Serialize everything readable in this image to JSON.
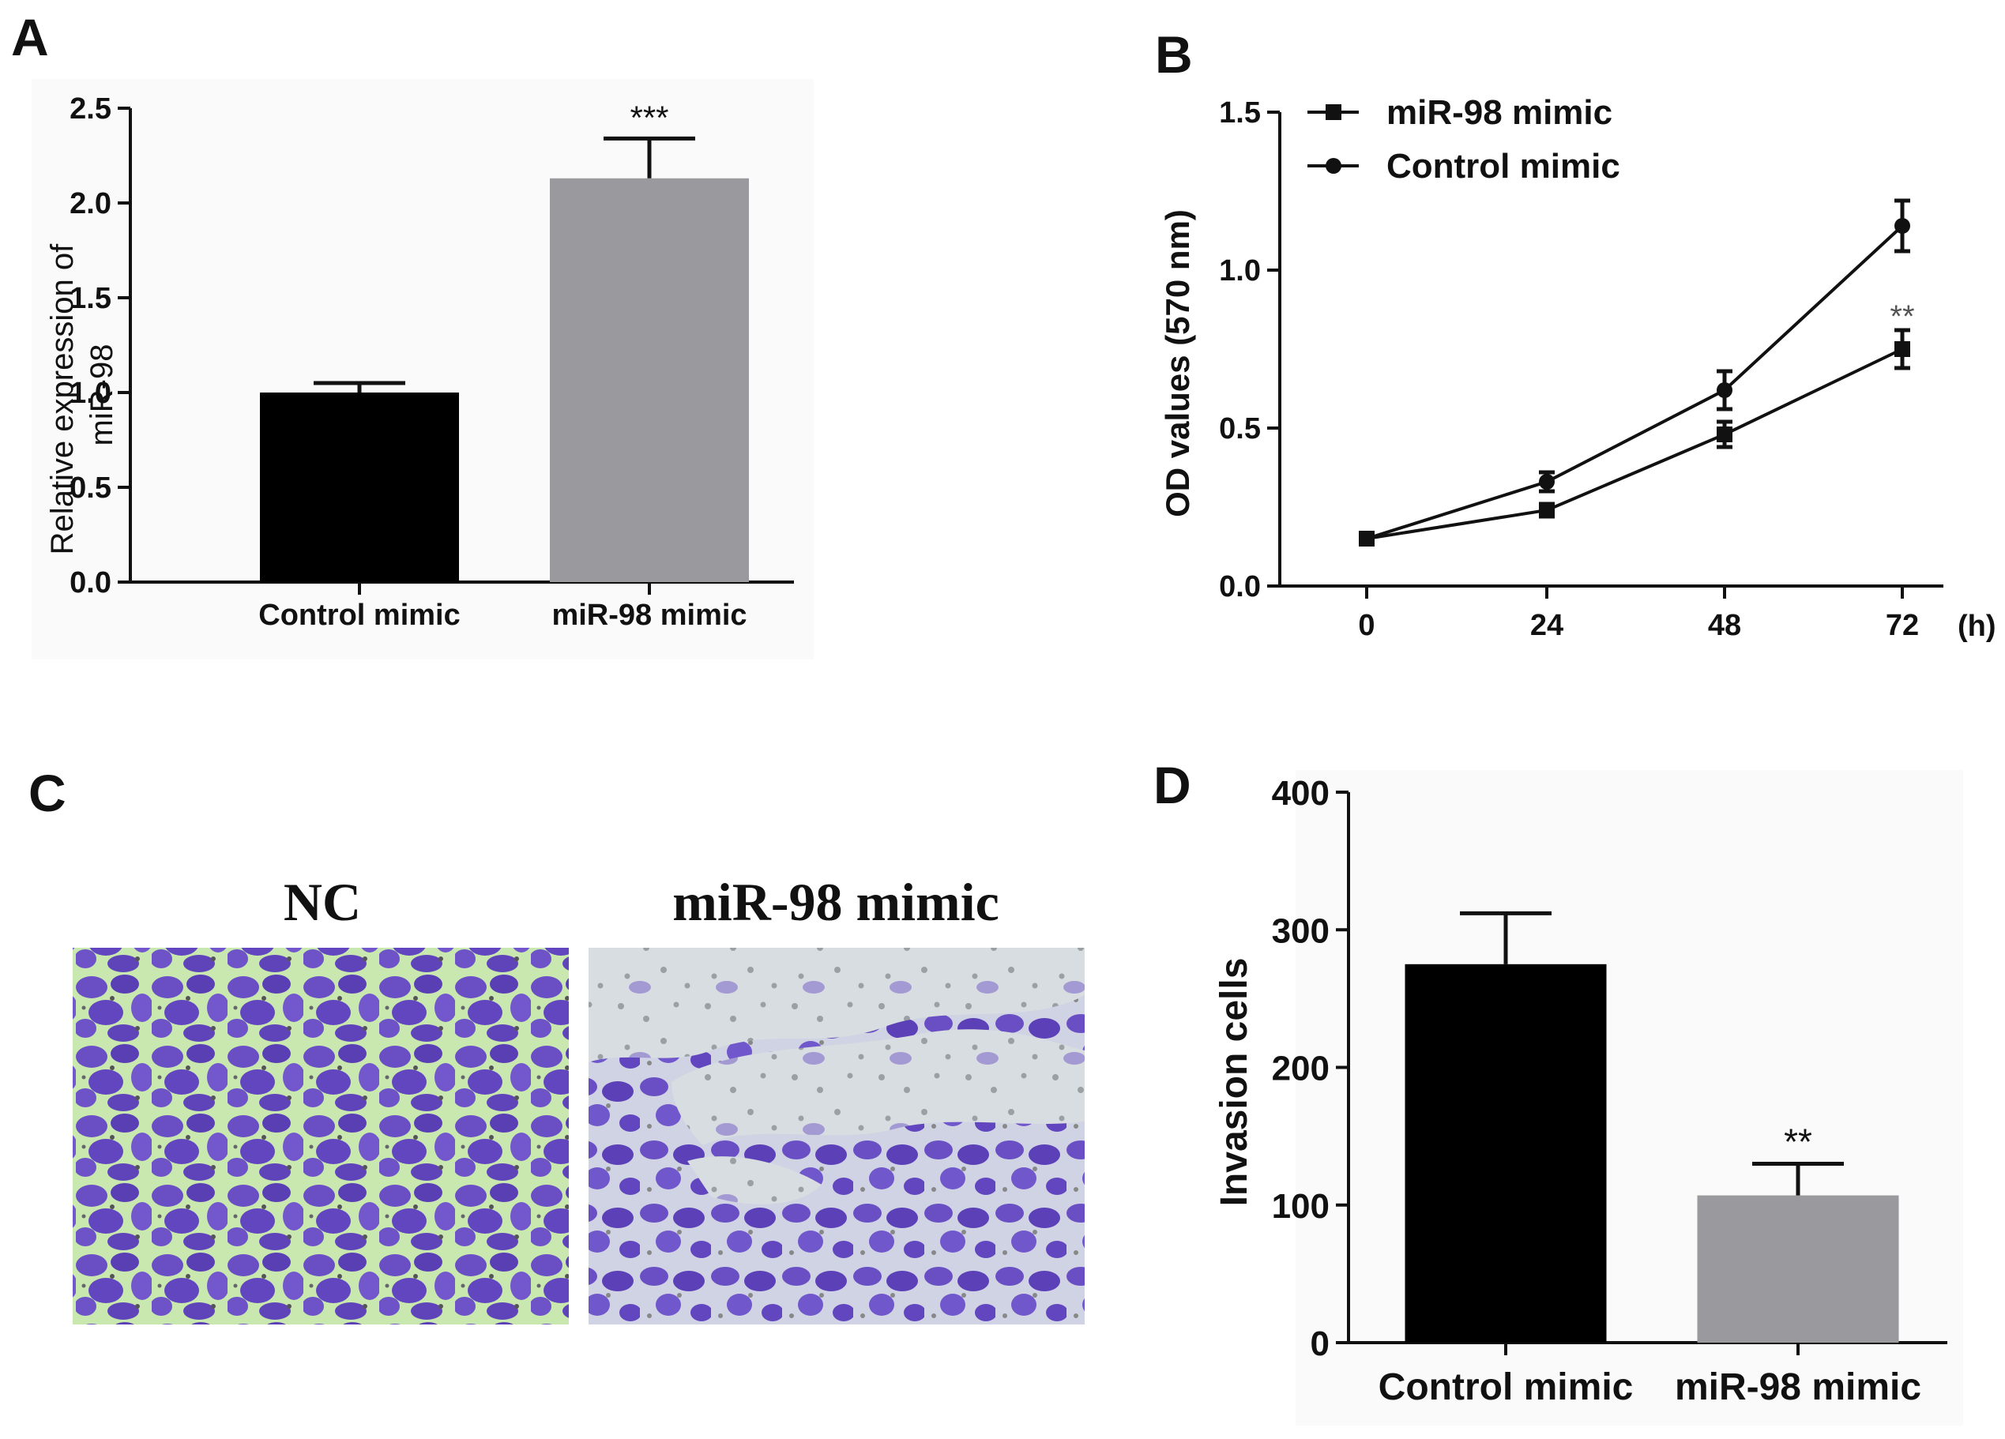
{
  "panels": {
    "A": "A",
    "B": "B",
    "C": "C",
    "D": "D"
  },
  "chart_data": [
    {
      "panel": "A",
      "type": "bar",
      "categories": [
        "Control mimic",
        "miR-98 mimic"
      ],
      "values": [
        1.0,
        2.13
      ],
      "errors": [
        0.05,
        0.21
      ],
      "colors": [
        "#000000",
        "#9a9a9e"
      ],
      "significance": [
        "",
        "***"
      ],
      "ylabel": "Relative expression of miR-98",
      "ylim": [
        0,
        2.5
      ],
      "yticks": [
        "0.0",
        "0.5",
        "1.0",
        "1.5",
        "2.0",
        "2.5"
      ]
    },
    {
      "panel": "B",
      "type": "line",
      "x": [
        0,
        24,
        48,
        72
      ],
      "xticks": [
        "0",
        "24",
        "48",
        "72"
      ],
      "xunit": "(h)",
      "ylabel": "OD values (570 nm)",
      "ylim": [
        0,
        1.5
      ],
      "yticks": [
        "0.0",
        "0.5",
        "1.0",
        "1.5"
      ],
      "legend_position": "top-left",
      "series": [
        {
          "name": "miR-98 mimic",
          "marker": "square",
          "values": [
            0.15,
            0.24,
            0.48,
            0.75
          ],
          "errors": [
            0.015,
            0.02,
            0.04,
            0.06
          ]
        },
        {
          "name": "Control mimic",
          "marker": "circle",
          "values": [
            0.15,
            0.33,
            0.62,
            1.14
          ],
          "errors": [
            0.015,
            0.03,
            0.06,
            0.08
          ]
        }
      ],
      "annotation": {
        "text": "**",
        "x": 72,
        "y": 0.855
      }
    },
    {
      "panel": "D",
      "type": "bar",
      "categories": [
        "Control mimic",
        "miR-98 mimic"
      ],
      "values": [
        275,
        107
      ],
      "errors": [
        37,
        23
      ],
      "colors": [
        "#000000",
        "#9a9a9e"
      ],
      "significance": [
        "",
        "**"
      ],
      "ylabel": "Invasion cells",
      "ylim": [
        0,
        400
      ],
      "yticks": [
        "0",
        "100",
        "200",
        "300",
        "400"
      ]
    }
  ],
  "micrographs": {
    "left_title": "NC",
    "right_title": "miR-98 mimic",
    "stain_color": "#6a4fc4",
    "background_left": "#c8e8b0",
    "background_right": "#d7dde0"
  }
}
